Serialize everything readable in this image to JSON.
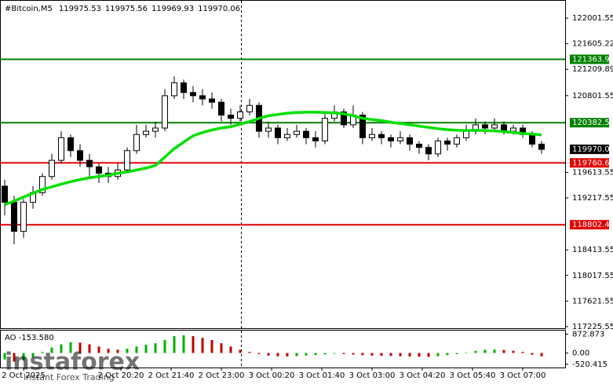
{
  "chart_data": {
    "type": "candlestick",
    "title": "#Bitcoin,M5",
    "quote": [
      119975.53,
      119975.56,
      119969.93,
      119970.06
    ],
    "x": [
      15,
      30,
      45,
      60,
      75,
      90,
      105,
      120,
      135,
      150,
      165,
      180,
      195,
      210,
      225,
      240,
      255,
      270,
      285,
      300,
      315,
      330,
      345,
      360,
      375,
      390,
      405,
      420,
      435,
      450,
      465,
      480,
      495,
      510,
      525,
      540,
      555,
      570,
      585,
      600,
      615,
      630,
      645,
      660,
      675,
      690,
      705,
      720,
      735,
      750,
      765,
      780,
      795,
      810,
      825,
      840,
      855,
      870
    ],
    "open": [
      119400,
      119150,
      118700,
      119150,
      119300,
      119550,
      119800,
      120150,
      119950,
      119800,
      119700,
      119600,
      119550,
      119650,
      119950,
      120200,
      120250,
      120300,
      120800,
      121000,
      120850,
      120800,
      120750,
      120700,
      120500,
      120450,
      120550,
      120650,
      120250,
      120300,
      120150,
      120200,
      120250,
      120150,
      120100,
      120450,
      120550,
      120350,
      120500,
      120150,
      120200,
      120150,
      120100,
      120150,
      120050,
      120000,
      119900,
      120100,
      120050,
      120150,
      120250,
      120350,
      120300,
      120350,
      120250,
      120300,
      120200,
      120050
    ],
    "high": [
      119500,
      119250,
      119200,
      119400,
      119600,
      119900,
      120250,
      120200,
      120050,
      119900,
      119750,
      119700,
      119750,
      120000,
      120350,
      120350,
      120400,
      120900,
      121100,
      121050,
      120950,
      120900,
      120850,
      120750,
      120600,
      120650,
      120750,
      120700,
      120400,
      120350,
      120300,
      120350,
      120300,
      120250,
      120550,
      120650,
      120600,
      120650,
      120550,
      120300,
      120250,
      120200,
      120250,
      120200,
      120100,
      120050,
      120150,
      120150,
      120200,
      120350,
      120450,
      120400,
      120450,
      120400,
      120350,
      120350,
      120250,
      120100
    ],
    "low": [
      118950,
      118500,
      118600,
      119050,
      119250,
      119500,
      119750,
      119850,
      119700,
      119550,
      119450,
      119450,
      119500,
      119600,
      119900,
      120150,
      120150,
      120250,
      120750,
      120750,
      120700,
      120650,
      120600,
      120400,
      120350,
      120400,
      120500,
      120150,
      120150,
      120050,
      120100,
      120150,
      120050,
      120000,
      120050,
      120400,
      120300,
      120300,
      120050,
      120100,
      120050,
      120000,
      120050,
      119950,
      119900,
      119800,
      119850,
      119950,
      120000,
      120100,
      120200,
      120200,
      120250,
      120200,
      120200,
      120150,
      120000,
      119900
    ],
    "close": [
      119150,
      118700,
      119150,
      119300,
      119550,
      119800,
      120150,
      119950,
      119800,
      119700,
      119600,
      119550,
      119650,
      119950,
      120200,
      120250,
      120300,
      120800,
      121000,
      120850,
      120800,
      120750,
      120700,
      120500,
      120450,
      120550,
      120650,
      120250,
      120300,
      120150,
      120200,
      120250,
      120150,
      120100,
      120450,
      120550,
      120350,
      120500,
      120150,
      120200,
      120150,
      120100,
      120150,
      120050,
      120000,
      119900,
      120100,
      120050,
      120150,
      120250,
      120350,
      120300,
      120350,
      120250,
      120300,
      120200,
      120050,
      119970
    ],
    "candle_colors": [
      "#ffffff",
      "#000000"
    ],
    "ma": {
      "color": "#00e000",
      "values": [
        119115,
        119170,
        119230,
        119290,
        119350,
        119390,
        119430,
        119470,
        119500,
        119530,
        119550,
        119570,
        119600,
        119620,
        119650,
        119680,
        119720,
        119850,
        119980,
        120080,
        120180,
        120230,
        120270,
        120300,
        120320,
        120360,
        120400,
        120450,
        120490,
        120510,
        120530,
        120540,
        120545,
        120545,
        120540,
        120535,
        120520,
        120490,
        120450,
        120430,
        120415,
        120390,
        120370,
        120350,
        120330,
        120310,
        120290,
        120275,
        120265,
        120260,
        120265,
        120260,
        120255,
        120245,
        120230,
        120215,
        120205,
        120195
      ]
    },
    "levels": [
      {
        "value": 121363.98,
        "color": "#008000"
      },
      {
        "value": 120382.55,
        "color": "#008000"
      },
      {
        "value": 119760.62,
        "color": "#e00000"
      },
      {
        "value": 118802.47,
        "color": "#e00000"
      }
    ],
    "current_price": 119970.06,
    "xlim": [
      7.5,
      907.5
    ],
    "ylim": [
      117200,
      122270
    ],
    "yticks": [
      122001.55,
      121605.22,
      121209.89,
      120801.55,
      119613.55,
      119217.55,
      118413.55,
      118017.55,
      117621.55,
      117225.55
    ],
    "xticks": [
      {
        "value": 45,
        "label": "2 Oct 2025"
      },
      {
        "value": 200,
        "label": "2 Oct 20:20"
      },
      {
        "value": 280,
        "label": "2 Oct 21:40"
      },
      {
        "value": 360,
        "label": "2 Oct 23:00"
      },
      {
        "value": 440,
        "label": "3 Oct 00:20"
      },
      {
        "value": 520,
        "label": "3 Oct 01:40"
      },
      {
        "value": 600,
        "label": "3 Oct 03:00"
      },
      {
        "value": 680,
        "label": "3 Oct 04:20"
      },
      {
        "value": 760,
        "label": "3 Oct 05:40"
      },
      {
        "value": 840,
        "label": "3 Oct 07:00"
      }
    ],
    "ao": {
      "type": "bar",
      "title": "AO -153.580",
      "colors": [
        "#00b000",
        "#c00000"
      ],
      "values": [
        -300,
        -400,
        -350,
        -200,
        50,
        250,
        400,
        500,
        480,
        400,
        300,
        200,
        150,
        200,
        300,
        380,
        450,
        600,
        780,
        820,
        780,
        700,
        600,
        450,
        300,
        150,
        50,
        -50,
        -120,
        -150,
        -160,
        -140,
        -120,
        -100,
        -60,
        -30,
        -50,
        -70,
        -100,
        -120,
        -130,
        -140,
        -150,
        -160,
        -170,
        -180,
        -150,
        -100,
        -50,
        20,
        100,
        150,
        160,
        140,
        100,
        50,
        -80,
        -153.58
      ],
      "ylim": [
        -600,
        1000
      ],
      "yticks": [
        872.873,
        {
          "value": 0,
          "label": "0.00"
        },
        -520.415
      ]
    },
    "watermark": {
      "brand": "instaforex",
      "tagline": "Instant Forex Trading"
    }
  }
}
